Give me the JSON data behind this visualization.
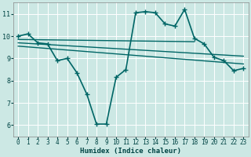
{
  "xlabel": "Humidex (Indice chaleur)",
  "background_color": "#cce8e4",
  "grid_color": "#ffffff",
  "line_color": "#006666",
  "xlim": [
    -0.5,
    23.5
  ],
  "ylim": [
    5.5,
    11.5
  ],
  "yticks": [
    6,
    7,
    8,
    9,
    10,
    11
  ],
  "xticks": [
    0,
    1,
    2,
    3,
    4,
    5,
    6,
    7,
    8,
    9,
    10,
    11,
    12,
    13,
    14,
    15,
    16,
    17,
    18,
    19,
    20,
    21,
    22,
    23
  ],
  "series": [
    {
      "x": [
        0,
        1,
        2,
        3,
        4,
        5,
        6,
        7,
        8,
        9,
        10,
        11,
        12,
        13,
        14,
        15,
        16,
        17,
        18,
        19,
        20,
        21,
        22,
        23
      ],
      "y": [
        10.0,
        10.1,
        9.7,
        9.65,
        8.9,
        9.0,
        8.35,
        7.4,
        6.05,
        6.05,
        8.15,
        8.5,
        11.05,
        11.1,
        11.05,
        10.55,
        10.45,
        11.2,
        9.9,
        9.65,
        9.05,
        8.9,
        8.45,
        8.55
      ],
      "marker": "+",
      "markersize": 4,
      "linewidth": 1.2
    },
    {
      "x": [
        0,
        18
      ],
      "y": [
        9.85,
        9.75
      ],
      "marker": null,
      "linewidth": 1.0
    },
    {
      "x": [
        0,
        23
      ],
      "y": [
        9.7,
        9.1
      ],
      "marker": null,
      "linewidth": 1.0
    },
    {
      "x": [
        0,
        23
      ],
      "y": [
        9.55,
        8.75
      ],
      "marker": null,
      "linewidth": 1.0
    }
  ]
}
